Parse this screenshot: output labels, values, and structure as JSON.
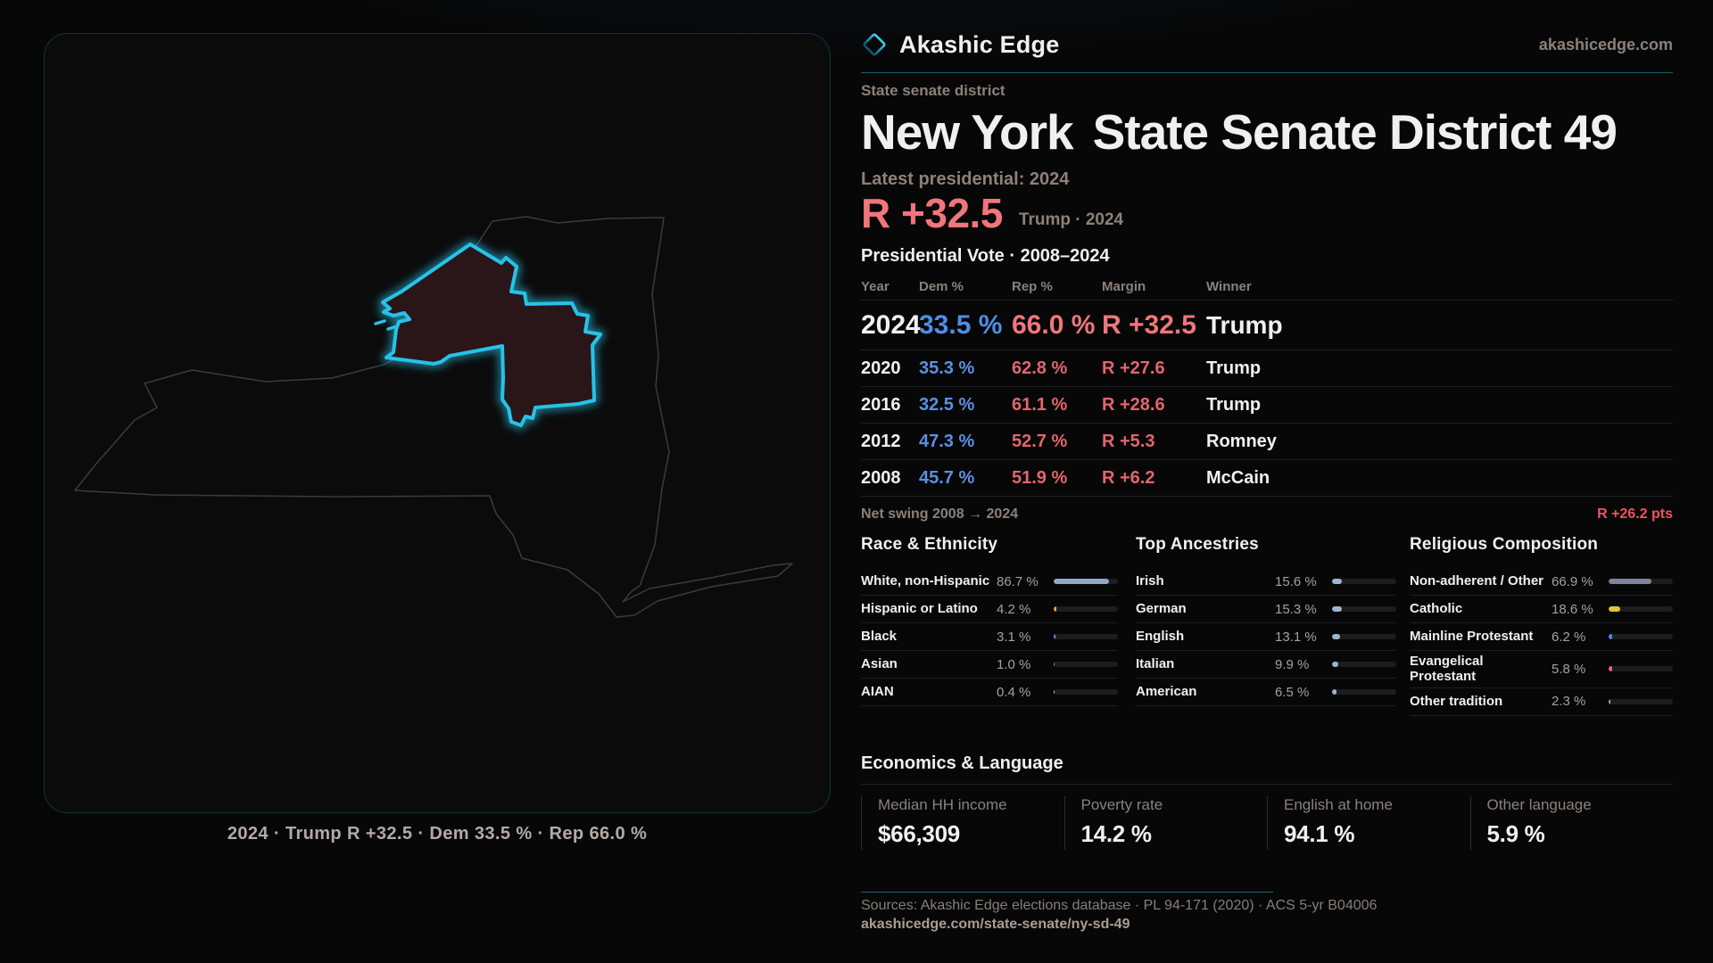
{
  "brand": {
    "name": "Akashic Edge",
    "domain": "akashicedge.com",
    "logo_icon": "diamond-outline"
  },
  "colors": {
    "accent_cyan": "#2ec5e9",
    "accent_red": "#f0767b",
    "dem_blue": "#5b90e2",
    "rep_red": "#e2666c",
    "net_swing_red": "#f0525e",
    "district_fill": "#2a1519"
  },
  "header": {
    "kicker": "State senate district",
    "title_region": "New York",
    "title_rest": "State Senate District 49"
  },
  "latest": {
    "label": "Latest presidential: 2024",
    "margin": "R +32.5",
    "sub": "Trump · 2024"
  },
  "vote_table": {
    "title": "Presidential Vote · 2008–2024",
    "columns": [
      "Year",
      "Dem %",
      "Rep %",
      "Margin",
      "Winner"
    ],
    "rows": [
      {
        "year": "2024",
        "dem": "33.5 %",
        "rep": "66.0 %",
        "margin": "R +32.5",
        "winner": "Trump"
      },
      {
        "year": "2020",
        "dem": "35.3 %",
        "rep": "62.8 %",
        "margin": "R +27.6",
        "winner": "Trump"
      },
      {
        "year": "2016",
        "dem": "32.5 %",
        "rep": "61.1 %",
        "margin": "R +28.6",
        "winner": "Trump"
      },
      {
        "year": "2012",
        "dem": "47.3 %",
        "rep": "52.7 %",
        "margin": "R +5.3",
        "winner": "Romney"
      },
      {
        "year": "2008",
        "dem": "45.7 %",
        "rep": "51.9 %",
        "margin": "R +6.2",
        "winner": "McCain"
      }
    ]
  },
  "net_swing": {
    "label": "Net swing 2008 → 2024",
    "value": "R +26.2 pts"
  },
  "demographics": {
    "race": {
      "title": "Race & Ethnicity",
      "rows": [
        {
          "label": "White, non-Hispanic",
          "value": "86.7 %",
          "pct": 86.7,
          "color": "#93a7c7"
        },
        {
          "label": "Hispanic or Latino",
          "value": "4.2 %",
          "pct": 4.2,
          "color": "#e8a23c"
        },
        {
          "label": "Black",
          "value": "3.1 %",
          "pct": 3.1,
          "color": "#8d7ae0"
        },
        {
          "label": "Asian",
          "value": "1.0 %",
          "pct": 1.0,
          "color": "#3fc79e"
        },
        {
          "label": "AIAN",
          "value": "0.4 %",
          "pct": 0.4,
          "color": "#b9c2cc"
        }
      ]
    },
    "ancestries": {
      "title": "Top Ancestries",
      "rows": [
        {
          "label": "Irish",
          "value": "15.6 %",
          "pct": 15.6,
          "color": "#9db5d1"
        },
        {
          "label": "German",
          "value": "15.3 %",
          "pct": 15.3,
          "color": "#9db5d1"
        },
        {
          "label": "English",
          "value": "13.1 %",
          "pct": 13.1,
          "color": "#9db5d1"
        },
        {
          "label": "Italian",
          "value": "9.9 %",
          "pct": 9.9,
          "color": "#9db5d1"
        },
        {
          "label": "American",
          "value": "6.5 %",
          "pct": 6.5,
          "color": "#9db5d1"
        }
      ]
    },
    "religion": {
      "title": "Religious Composition",
      "rows": [
        {
          "label": "Non-adherent / Other",
          "value": "66.9 %",
          "pct": 66.9,
          "color": "#7d8696"
        },
        {
          "label": "Catholic",
          "value": "18.6 %",
          "pct": 18.6,
          "color": "#e3c43a"
        },
        {
          "label": "Mainline Protestant",
          "value": "6.2 %",
          "pct": 6.2,
          "color": "#4a8fe0"
        },
        {
          "label": "Evangelical Protestant",
          "value": "5.8 %",
          "pct": 5.8,
          "color": "#e06b6b"
        },
        {
          "label": "Other tradition",
          "value": "2.3 %",
          "pct": 2.3,
          "color": "#9aa3ad"
        }
      ]
    }
  },
  "economics": {
    "title": "Economics & Language",
    "stats": [
      {
        "label": "Median HH income",
        "value": "$66,309"
      },
      {
        "label": "Poverty rate",
        "value": "14.2 %"
      },
      {
        "label": "English at home",
        "value": "94.1 %"
      },
      {
        "label": "Other language",
        "value": "5.9 %"
      }
    ]
  },
  "map": {
    "caption": "2024 · Trump R +32.5 · Dem 33.5 % · Rep 66.0 %"
  },
  "footer": {
    "sources": "Sources: Akashic Edge elections database · PL 94-171 (2020) · ACS 5-yr B04006",
    "url": "akashicedge.com/state-senate/ny-sd-49"
  }
}
